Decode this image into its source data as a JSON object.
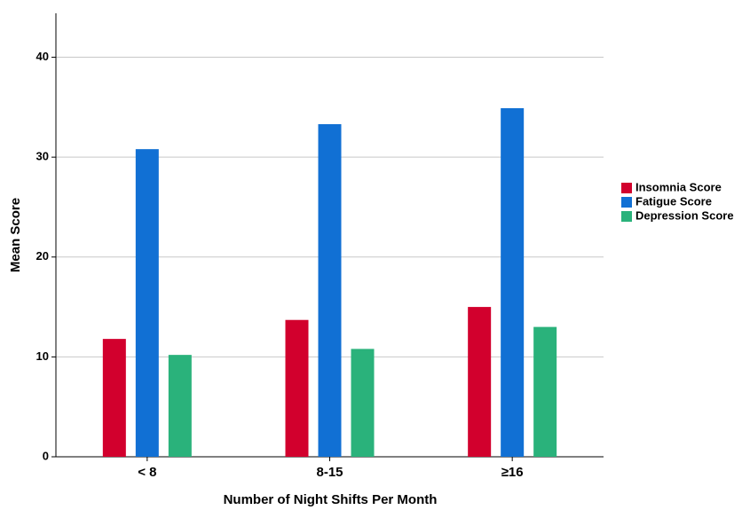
{
  "chart_data": {
    "type": "bar",
    "x_label": "Number of Night Shifts Per Month",
    "y_label": "Mean Score",
    "categories": [
      "< 8",
      "8-15",
      "≥16"
    ],
    "series": [
      {
        "name": "Insomnia Score",
        "color": "#d2002d",
        "values": [
          11.8,
          13.7,
          15.0
        ]
      },
      {
        "name": "Fatigue Score",
        "color": "#1170d4",
        "values": [
          30.8,
          33.3,
          34.9
        ]
      },
      {
        "name": "Depression Score",
        "color": "#2ab27b",
        "values": [
          10.2,
          10.8,
          13.0
        ]
      }
    ],
    "ylim": [
      0,
      44.4
    ],
    "yticks": [
      0,
      10,
      20,
      30,
      40
    ],
    "grid": true,
    "legend": "right"
  }
}
